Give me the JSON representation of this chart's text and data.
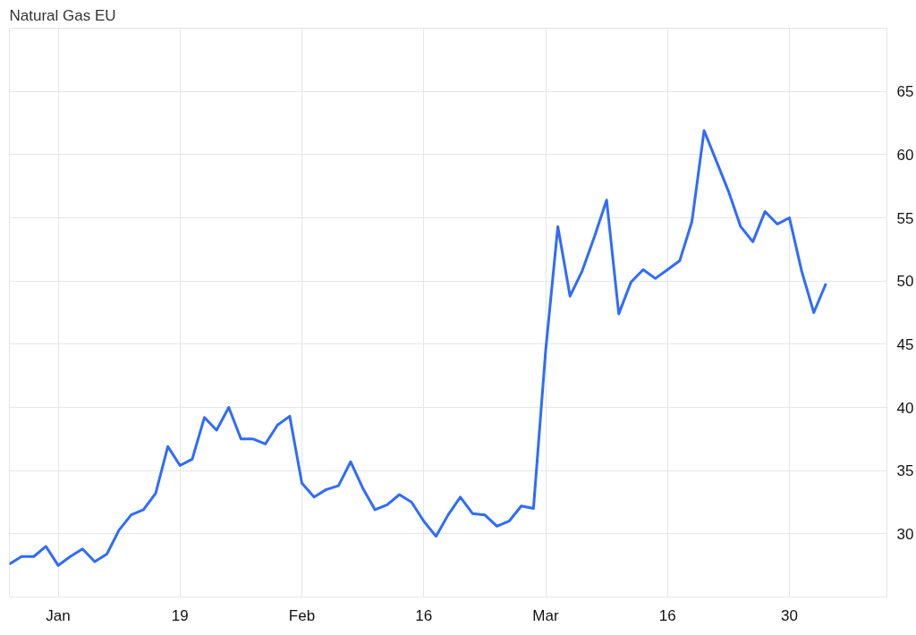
{
  "chart_data": {
    "type": "line",
    "title": "Natural Gas EU",
    "categories": [
      null,
      null,
      null,
      null,
      "Jan",
      null,
      null,
      null,
      null,
      null,
      null,
      null,
      null,
      null,
      "19",
      null,
      null,
      null,
      null,
      null,
      null,
      null,
      null,
      null,
      "Feb",
      null,
      null,
      null,
      null,
      null,
      null,
      null,
      null,
      null,
      "16",
      null,
      null,
      null,
      null,
      null,
      null,
      null,
      null,
      null,
      "Mar",
      null,
      null,
      null,
      null,
      null,
      null,
      null,
      null,
      null,
      "16",
      null,
      null,
      null,
      null,
      null,
      null,
      null,
      null,
      null,
      "30",
      null,
      null,
      null
    ],
    "series": [
      {
        "color": "#2f6bff",
        "values": [
          27.6,
          28.2,
          28.2,
          29.0,
          27.5,
          28.2,
          28.8,
          27.8,
          28.4,
          30.3,
          31.5,
          31.9,
          33.2,
          36.9,
          35.4,
          35.9,
          39.2,
          38.2,
          40.0,
          37.5,
          37.5,
          37.1,
          38.6,
          39.3,
          34.0,
          32.9,
          33.5,
          33.8,
          35.7,
          33.6,
          31.9,
          32.3,
          33.1,
          32.5,
          31.0,
          29.8,
          31.5,
          32.9,
          31.6,
          31.5,
          30.6,
          31.0,
          32.2,
          32.0,
          44.5,
          54.3,
          48.8,
          50.8,
          53.5,
          56.4,
          47.4,
          49.9,
          50.9,
          50.2,
          50.9,
          51.6,
          54.7,
          61.9,
          59.5,
          57.1,
          54.3,
          53.1,
          55.5,
          54.5,
          55.0,
          50.8,
          47.5,
          49.8
        ]
      }
    ],
    "ylim": [
      25,
      70
    ],
    "yticks": [
      30,
      35,
      40,
      45,
      50,
      55,
      60,
      65
    ],
    "grid": true,
    "marker": "none",
    "line_style": "solid"
  }
}
